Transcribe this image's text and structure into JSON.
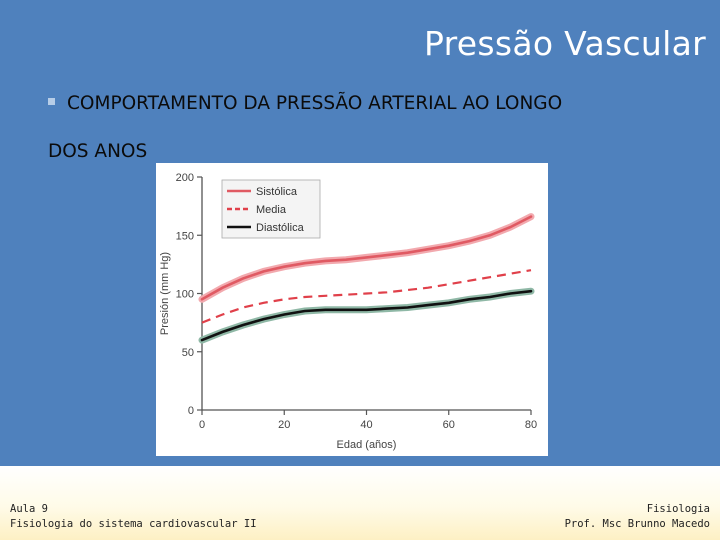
{
  "slide": {
    "title": "Pressão Vascular",
    "bullet_line1": "COMPORTAMENTO  DA  PRESSÃO  ARTERIAL  AO  LONGO",
    "bullet_line2": "DOS ANOS"
  },
  "footer": {
    "left_line1": "Aula 9",
    "left_line2": "Fisiologia do sistema cardiovascular II",
    "right_line1": "Fisiologia",
    "right_line2": "Prof. Msc Brunno Macedo"
  },
  "colors": {
    "background": "#4f81bd",
    "systolic": "#e05a63",
    "mean": "#e0404a",
    "diastolic": "#111111",
    "diastolic_halo": "#8fb8a6"
  },
  "chart_data": {
    "type": "line",
    "xlabel": "Edad (años)",
    "ylabel": "Presión (mm Hg)",
    "xlim": [
      0,
      80
    ],
    "ylim": [
      0,
      200
    ],
    "x_ticks": [
      "0",
      "20",
      "40",
      "60",
      "80"
    ],
    "y_ticks": [
      "0",
      "50",
      "100",
      "150",
      "200"
    ],
    "grid": false,
    "legend_position": "top-left",
    "x": [
      0,
      5,
      10,
      15,
      20,
      25,
      30,
      35,
      40,
      45,
      50,
      55,
      60,
      65,
      70,
      75,
      80
    ],
    "series": [
      {
        "name": "Sistólica",
        "style": "solid",
        "color_key": "systolic",
        "values": [
          95,
          105,
          113,
          119,
          123,
          126,
          128,
          129,
          131,
          133,
          135,
          138,
          141,
          145,
          150,
          157,
          166
        ]
      },
      {
        "name": "Media",
        "style": "dashed",
        "color_key": "mean",
        "values": [
          75,
          82,
          88,
          92,
          95,
          97,
          98,
          99,
          100,
          101,
          103,
          105,
          108,
          111,
          114,
          117,
          120
        ]
      },
      {
        "name": "Diastólica",
        "style": "solid",
        "color_key": "diastolic",
        "values": [
          60,
          67,
          73,
          78,
          82,
          85,
          86,
          86,
          86,
          87,
          88,
          90,
          92,
          95,
          97,
          100,
          102
        ]
      }
    ]
  }
}
